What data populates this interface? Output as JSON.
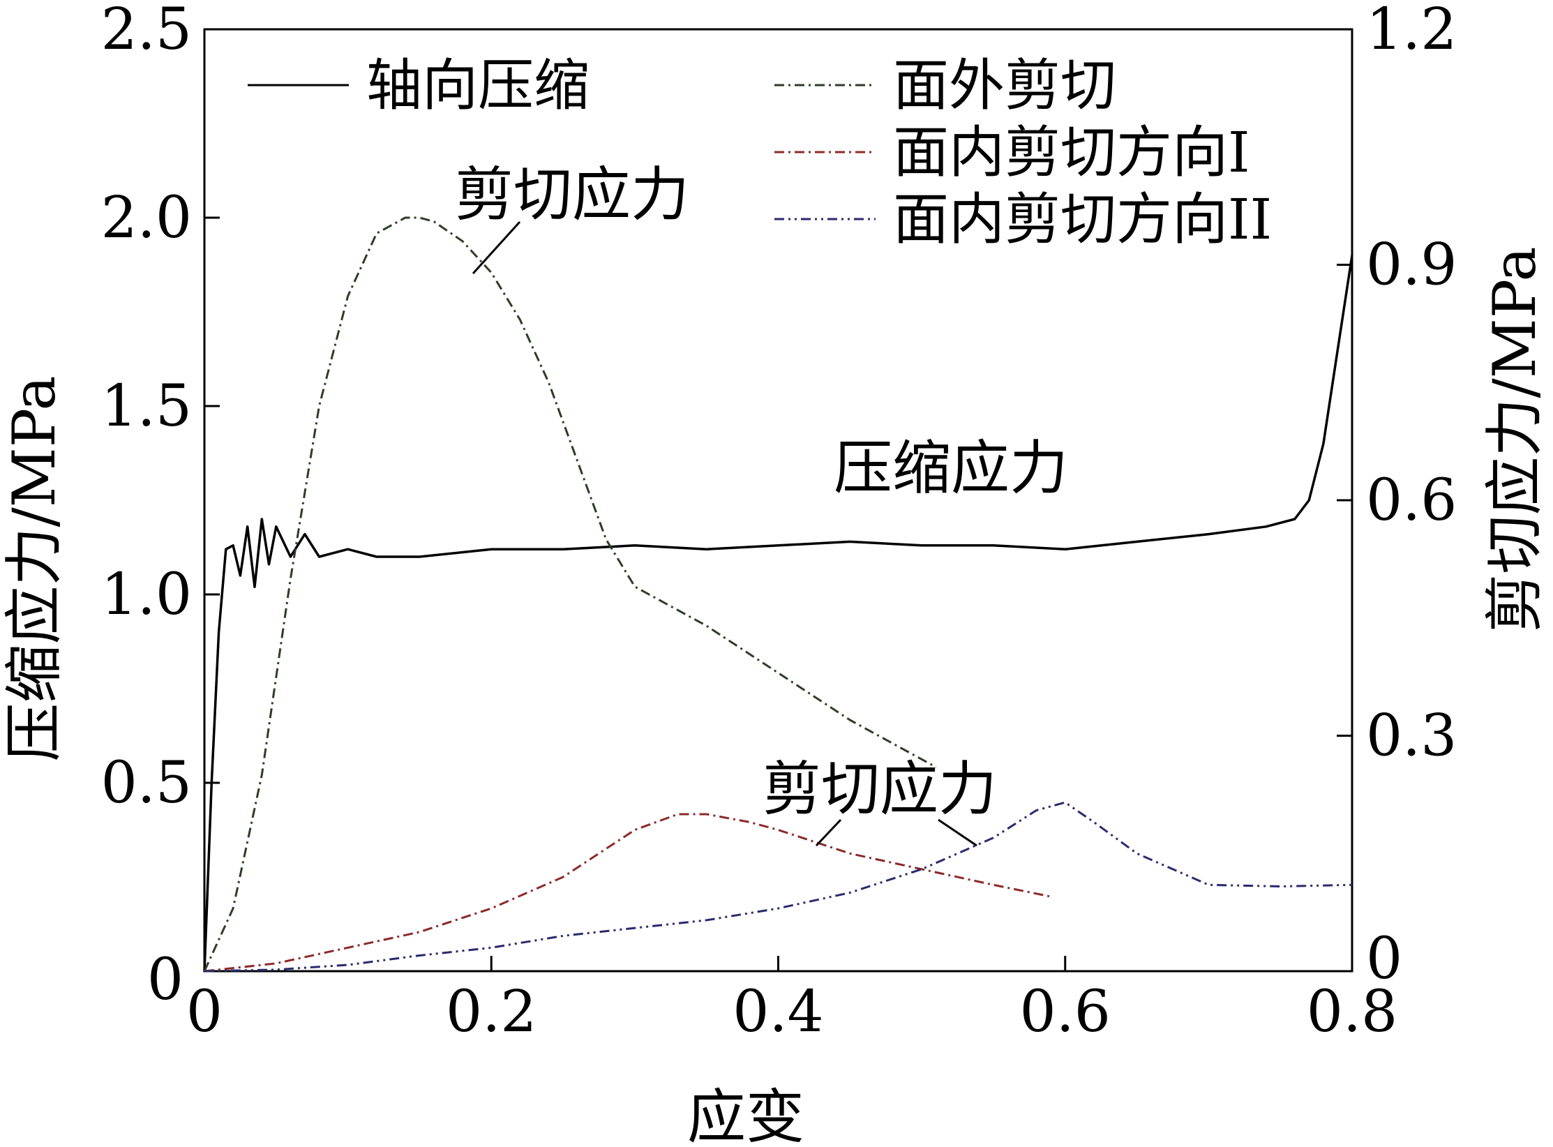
{
  "chart_data": {
    "type": "line",
    "xlabel": "应变",
    "ylabel_left": "压缩应力/MPa",
    "ylabel_right": "剪切应力/MPa",
    "xlim": [
      0,
      0.8
    ],
    "ylim_left": [
      0,
      2.5
    ],
    "ylim_right": [
      0,
      1.2
    ],
    "x_ticks": [
      "0",
      "0.2",
      "0.4",
      "0.6",
      "0.8"
    ],
    "y_left_ticks": [
      "0",
      "0.5",
      "1.0",
      "1.5",
      "2.0",
      "2.5"
    ],
    "y_right_ticks": [
      "0",
      "0.3",
      "0.6",
      "0.9",
      "1.2"
    ],
    "grid": false,
    "legend_position": "top",
    "annotations": [
      {
        "text": "剪切应力",
        "target": "面外剪切"
      },
      {
        "text": "压缩应力",
        "target": "轴向压缩"
      },
      {
        "text": "剪切应力",
        "target": "面内剪切"
      }
    ],
    "series": [
      {
        "name": "轴向压缩",
        "axis": "left",
        "color": "#000000",
        "dash": "",
        "x": [
          0,
          0.005,
          0.01,
          0.015,
          0.02,
          0.025,
          0.03,
          0.035,
          0.04,
          0.045,
          0.05,
          0.06,
          0.07,
          0.08,
          0.1,
          0.12,
          0.15,
          0.2,
          0.25,
          0.3,
          0.35,
          0.4,
          0.45,
          0.5,
          0.55,
          0.6,
          0.65,
          0.7,
          0.74,
          0.76,
          0.77,
          0.78,
          0.79,
          0.8
        ],
        "y": [
          0,
          0.5,
          0.9,
          1.12,
          1.13,
          1.05,
          1.18,
          1.02,
          1.2,
          1.08,
          1.18,
          1.1,
          1.16,
          1.1,
          1.12,
          1.1,
          1.1,
          1.12,
          1.12,
          1.13,
          1.12,
          1.13,
          1.14,
          1.13,
          1.13,
          1.12,
          1.14,
          1.16,
          1.18,
          1.2,
          1.25,
          1.4,
          1.65,
          1.9
        ]
      },
      {
        "name": "面外剪切",
        "axis": "right",
        "color": "#2e3d24",
        "dash": "14,6,3,6",
        "x": [
          0,
          0.02,
          0.04,
          0.06,
          0.08,
          0.1,
          0.12,
          0.14,
          0.15,
          0.16,
          0.18,
          0.2,
          0.22,
          0.24,
          0.26,
          0.28,
          0.3,
          0.35,
          0.4,
          0.45,
          0.5,
          0.51
        ],
        "y": [
          0,
          0.08,
          0.25,
          0.5,
          0.72,
          0.86,
          0.94,
          0.96,
          0.96,
          0.955,
          0.93,
          0.89,
          0.83,
          0.75,
          0.65,
          0.55,
          0.49,
          0.44,
          0.38,
          0.32,
          0.27,
          0.26
        ]
      },
      {
        "name": "面内剪切方向I",
        "axis": "right",
        "color": "#8b2a2a",
        "dash": "14,6,3,6",
        "x": [
          0,
          0.05,
          0.1,
          0.15,
          0.2,
          0.25,
          0.3,
          0.33,
          0.35,
          0.38,
          0.4,
          0.45,
          0.5,
          0.55,
          0.59
        ],
        "y": [
          0,
          0.01,
          0.03,
          0.05,
          0.08,
          0.12,
          0.18,
          0.2,
          0.2,
          0.19,
          0.18,
          0.15,
          0.13,
          0.11,
          0.095
        ]
      },
      {
        "name": "面内剪切方向II",
        "axis": "right",
        "color": "#2a2a6e",
        "dash": "14,6,3,6,3,6",
        "x": [
          0,
          0.05,
          0.1,
          0.15,
          0.2,
          0.25,
          0.3,
          0.35,
          0.4,
          0.45,
          0.5,
          0.55,
          0.58,
          0.6,
          0.62,
          0.65,
          0.7,
          0.75,
          0.8
        ],
        "y": [
          0,
          0.002,
          0.008,
          0.02,
          0.03,
          0.045,
          0.055,
          0.065,
          0.08,
          0.1,
          0.13,
          0.17,
          0.205,
          0.215,
          0.19,
          0.15,
          0.11,
          0.108,
          0.11
        ]
      }
    ]
  }
}
